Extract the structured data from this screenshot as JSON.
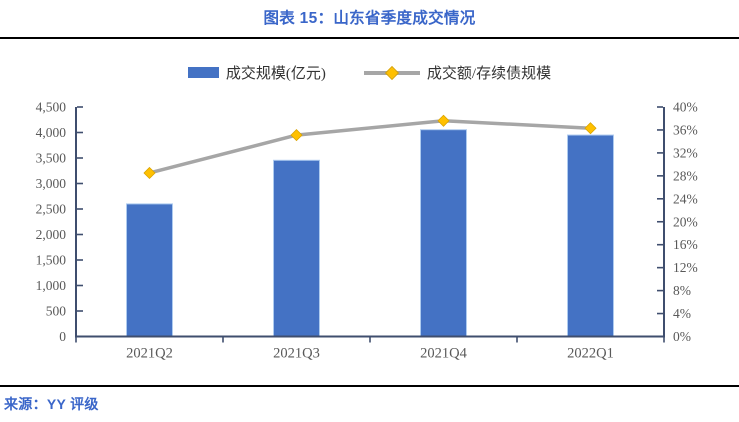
{
  "header": {
    "title": "图表 15：山东省季度成交情况"
  },
  "legend": {
    "items": [
      {
        "label": "成交规模(亿元)",
        "marker": "bar-swatch"
      },
      {
        "label": "成交额/存续债规模",
        "marker": "line-diamond-swatch"
      }
    ]
  },
  "footer": {
    "source": "来源：YY 评级"
  },
  "colors": {
    "title": "#3A66C9",
    "source": "#3A66C9",
    "divider": "#000000",
    "bar": "#4472C4",
    "bar_border": "#AECBEF",
    "line": "#A6A6A6",
    "marker": "#FFC000",
    "marker_border": "#D9A300",
    "axis": "#3F4E6E",
    "tick_text": "#595959"
  },
  "chart_data": {
    "type": "combo",
    "title": "图表 15：山东省季度成交情况",
    "categories": [
      "2021Q2",
      "2021Q3",
      "2021Q4",
      "2022Q1"
    ],
    "series": [
      {
        "name": "成交规模(亿元)",
        "type": "bar",
        "axis": "left",
        "values": [
          2600,
          3455,
          4055,
          3950
        ]
      },
      {
        "name": "成交额/存续债规模",
        "type": "line",
        "axis": "right",
        "unit": "%",
        "values": [
          28.5,
          35.1,
          37.6,
          36.3
        ]
      }
    ],
    "left_axis": {
      "min": 0,
      "max": 4500,
      "step": 500,
      "tick_labels": [
        "4,500",
        "4,000",
        "3,500",
        "3,000",
        "2,500",
        "2,000",
        "1,500",
        "1,000",
        "500",
        "0"
      ]
    },
    "right_axis": {
      "min": 0,
      "max": 40,
      "step": 4,
      "tick_labels": [
        "40%",
        "36%",
        "32%",
        "28%",
        "24%",
        "20%",
        "16%",
        "12%",
        "8%",
        "4%",
        "0%"
      ]
    },
    "grid": false,
    "legend_position": "top"
  }
}
